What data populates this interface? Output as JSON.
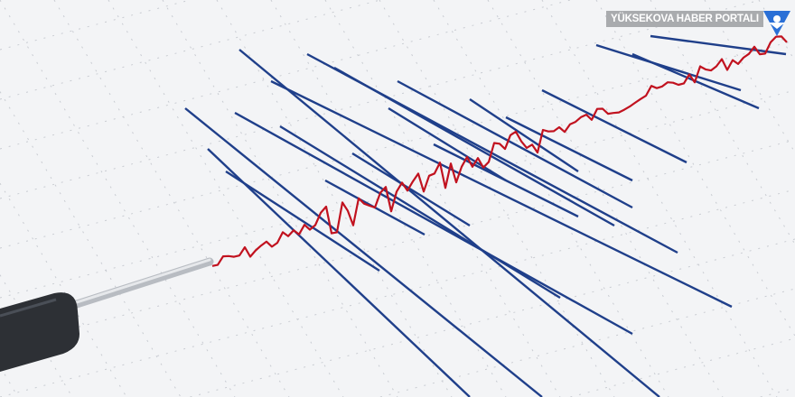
{
  "image": {
    "subject": "seismograph",
    "colors": {
      "paper": "#f3f4f6",
      "grid": "#c9ccd2",
      "trace_blue": "#1f3f8a",
      "trace_red": "#c1121f",
      "stylus": "#2d3035"
    }
  },
  "watermark": {
    "text": "YÜKSEKOVA HABER PORTALI",
    "logo_color": "#2a6fd6"
  }
}
